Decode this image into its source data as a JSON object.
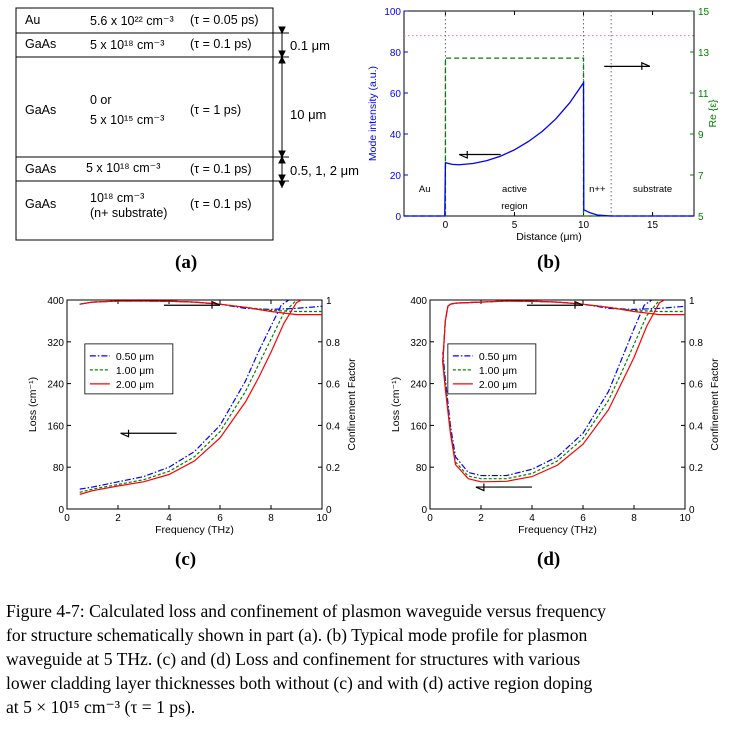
{
  "figure": {
    "panel_labels": [
      "(a)",
      "(b)",
      "(c)",
      "(d)"
    ],
    "caption": {
      "line1": "Figure 4-7: Calculated loss and confinement of plasmon waveguide versus frequency",
      "line2": "for structure schematically shown in part (a). (b) Typical mode profile for plasmon",
      "line3": "waveguide at 5 THz. (c) and (d) Loss and confinement for structures with various",
      "line4": "lower cladding layer thicknesses both without (c) and with (d) active region doping",
      "line5": "at 5 × 10¹⁵ cm⁻³ (τ = 1 ps)."
    }
  },
  "layers": {
    "rows": [
      {
        "material": "Au",
        "doping": "5.6 x 10²² cm⁻³",
        "tau": "(τ = 0.05 ps)"
      },
      {
        "material": "GaAs",
        "doping": "5 x 10¹⁸ cm⁻³",
        "tau": "(τ = 0.1 ps)"
      },
      {
        "material": "GaAs",
        "doping": "0 or",
        "doping2": "5 x 10¹⁵ cm⁻³",
        "tau": "(τ = 1 ps)"
      },
      {
        "material": "GaAs",
        "doping": "5 x 10¹⁸ cm⁻³",
        "tau": "(τ = 0.1 ps)"
      },
      {
        "material": "GaAs",
        "doping": "10¹⁸ cm⁻³",
        "doping2": "(n+ substrate)",
        "tau": "(τ = 0.1 ps)"
      }
    ],
    "dims": [
      "0.1 μm",
      "10 μm",
      "0.5, 1, 2 μm"
    ]
  },
  "chart_data": [
    {
      "id": "b",
      "type": "line",
      "title": "",
      "xlabel": "Distance (μm)",
      "ylabel": "Mode intensity (a.u.)",
      "y2label": "Re {ε}",
      "xlim": [
        -3,
        18
      ],
      "ylim": [
        0,
        100
      ],
      "y2lim": [
        5,
        15
      ],
      "xticks": [
        0,
        5,
        10,
        15
      ],
      "yticks": [
        0,
        20,
        40,
        60,
        80,
        100
      ],
      "y2ticks": [
        5,
        7,
        9,
        11,
        13,
        15
      ],
      "colors": {
        "intensity": "#0000ff",
        "epsilon": "#008000",
        "marker": "#ff66aa",
        "divider": "#666666"
      },
      "series": [
        {
          "name": "Mode intensity",
          "axis": "left",
          "x": [
            -3,
            -0.05,
            0,
            0.5,
            1,
            2,
            3,
            4,
            5,
            6,
            7,
            8,
            9,
            10,
            10.02,
            10.5,
            11,
            12,
            15,
            18
          ],
          "y": [
            0,
            0,
            26,
            25.2,
            25,
            25.6,
            27,
            29.2,
            32.3,
            36.3,
            41.2,
            47.4,
            55.2,
            65,
            3,
            1.5,
            0.5,
            0,
            0,
            0
          ]
        },
        {
          "name": "Re {ε}",
          "axis": "right",
          "x": [
            -3,
            0,
            0,
            10,
            10,
            18
          ],
          "y": [
            5,
            5,
            12.7,
            12.7,
            5,
            5
          ]
        }
      ],
      "hline_right_axis": 13.8,
      "region_boundaries": [
        0,
        10,
        12
      ],
      "regions": [
        "Au",
        "active",
        "region",
        "n++",
        "substrate"
      ],
      "arrows": [
        "left (intensity axis)",
        "right (Re ε axis)"
      ]
    },
    {
      "id": "c",
      "type": "line",
      "xlabel": "Frequency (THz)",
      "ylabel": "Loss (cm⁻¹)",
      "y2label": "Confinement Factor",
      "xlim": [
        0,
        10
      ],
      "ylim": [
        0,
        400
      ],
      "y2lim": [
        0,
        1
      ],
      "xticks": [
        0,
        2,
        4,
        6,
        8,
        10
      ],
      "yticks": [
        0,
        80,
        160,
        240,
        320,
        400
      ],
      "y2ticks": [
        0,
        0.2,
        0.4,
        0.6,
        0.8,
        1
      ],
      "legend": [
        "0.50 μm",
        "1.00 μm",
        "2.00 μm"
      ],
      "legend_position": "left",
      "colors": [
        "#0000ff",
        "#008000",
        "#ff0000"
      ],
      "series": [
        {
          "name": "0.50 μm loss",
          "axis": "left",
          "x": [
            0.5,
            1,
            2,
            3,
            4,
            5,
            6,
            7,
            7.5,
            8,
            8.4,
            8.7
          ],
          "y": [
            38,
            42,
            52,
            62,
            80,
            110,
            160,
            245,
            300,
            350,
            390,
            400
          ]
        },
        {
          "name": "1.00 μm loss",
          "axis": "left",
          "x": [
            0.5,
            1,
            2,
            3,
            4,
            5,
            6,
            7,
            7.5,
            8,
            8.5,
            9
          ],
          "y": [
            32,
            38,
            47,
            56,
            72,
            100,
            148,
            225,
            275,
            325,
            375,
            400
          ]
        },
        {
          "name": "2.00 μm loss",
          "axis": "left",
          "x": [
            0.5,
            1,
            2,
            3,
            4,
            5,
            6,
            7,
            7.5,
            8,
            8.5,
            9,
            9.2
          ],
          "y": [
            28,
            35,
            44,
            52,
            66,
            92,
            136,
            205,
            250,
            300,
            355,
            395,
            400
          ]
        },
        {
          "name": "0.50 μm confinement",
          "axis": "right",
          "x": [
            0.5,
            1,
            2,
            3,
            4,
            5,
            6,
            7,
            8,
            9,
            10
          ],
          "y": [
            0.98,
            0.99,
            0.995,
            0.995,
            0.994,
            0.99,
            0.98,
            0.96,
            0.955,
            0.96,
            0.97
          ]
        },
        {
          "name": "1.00 μm confinement",
          "axis": "right",
          "x": [
            0.5,
            1,
            2,
            3,
            4,
            5,
            6,
            7,
            8,
            9,
            10
          ],
          "y": [
            0.98,
            0.99,
            0.995,
            0.995,
            0.994,
            0.99,
            0.98,
            0.965,
            0.95,
            0.945,
            0.945
          ]
        },
        {
          "name": "2.00 μm confinement",
          "axis": "right",
          "x": [
            0.5,
            1,
            2,
            3,
            4,
            5,
            6,
            7,
            8,
            9,
            10
          ],
          "y": [
            0.98,
            0.99,
            0.995,
            0.995,
            0.994,
            0.99,
            0.98,
            0.965,
            0.945,
            0.93,
            0.93
          ]
        }
      ],
      "arrows": [
        "left (loss axis)",
        "right (confinement axis)"
      ]
    },
    {
      "id": "d",
      "type": "line",
      "xlabel": "Frequency (THz)",
      "ylabel": "Loss (cm⁻¹)",
      "y2label": "Confinement Factor",
      "xlim": [
        0,
        10
      ],
      "ylim": [
        0,
        400
      ],
      "y2lim": [
        0,
        1
      ],
      "xticks": [
        0,
        2,
        4,
        6,
        8,
        10
      ],
      "yticks": [
        0,
        80,
        160,
        240,
        320,
        400
      ],
      "y2ticks": [
        0,
        0.2,
        0.4,
        0.6,
        0.8,
        1
      ],
      "legend": [
        "0.50 μm",
        "1.00 μm",
        "2.00 μm"
      ],
      "legend_position": "left",
      "colors": [
        "#0000ff",
        "#008000",
        "#ff0000"
      ],
      "series": [
        {
          "name": "0.50 μm loss",
          "axis": "left",
          "x": [
            0.5,
            0.6,
            0.8,
            1,
            1.5,
            2,
            3,
            4,
            5,
            6,
            7,
            7.5,
            8,
            8.4,
            8.7
          ],
          "y": [
            300,
            250,
            160,
            100,
            70,
            64,
            64,
            76,
            100,
            145,
            225,
            285,
            345,
            390,
            400
          ]
        },
        {
          "name": "1.00 μm loss",
          "axis": "left",
          "x": [
            0.5,
            0.6,
            0.8,
            1,
            1.5,
            2,
            3,
            4,
            5,
            6,
            7,
            7.5,
            8,
            8.5,
            9
          ],
          "y": [
            290,
            240,
            150,
            90,
            63,
            58,
            58,
            68,
            92,
            135,
            208,
            260,
            315,
            370,
            400
          ]
        },
        {
          "name": "2.00 μm loss",
          "axis": "left",
          "x": [
            0.5,
            0.6,
            0.8,
            1,
            1.5,
            2,
            3,
            4,
            5,
            6,
            7,
            7.5,
            8,
            8.5,
            9,
            9.2
          ],
          "y": [
            280,
            230,
            145,
            85,
            58,
            52,
            53,
            62,
            84,
            124,
            190,
            240,
            290,
            350,
            395,
            400
          ]
        },
        {
          "name": "0.50 μm confinement",
          "axis": "right",
          "x": [
            0.5,
            0.6,
            0.7,
            0.8,
            1,
            2,
            3,
            4,
            5,
            6,
            7,
            8,
            9,
            10
          ],
          "y": [
            0.7,
            0.9,
            0.97,
            0.98,
            0.985,
            0.99,
            0.995,
            0.994,
            0.99,
            0.98,
            0.96,
            0.955,
            0.96,
            0.97
          ]
        },
        {
          "name": "1.00 μm confinement",
          "axis": "right",
          "x": [
            0.5,
            0.6,
            0.7,
            0.8,
            1,
            2,
            3,
            4,
            5,
            6,
            7,
            8,
            9,
            10
          ],
          "y": [
            0.7,
            0.9,
            0.97,
            0.98,
            0.985,
            0.99,
            0.995,
            0.994,
            0.99,
            0.98,
            0.965,
            0.95,
            0.945,
            0.945
          ]
        },
        {
          "name": "2.00 μm confinement",
          "axis": "right",
          "x": [
            0.5,
            0.6,
            0.7,
            0.8,
            1,
            2,
            3,
            4,
            5,
            6,
            7,
            8,
            9,
            10
          ],
          "y": [
            0.7,
            0.9,
            0.97,
            0.98,
            0.985,
            0.99,
            0.995,
            0.994,
            0.99,
            0.98,
            0.965,
            0.945,
            0.93,
            0.93
          ]
        }
      ],
      "arrows": [
        "right (confinement axis)",
        "left (loss axis)"
      ]
    }
  ]
}
